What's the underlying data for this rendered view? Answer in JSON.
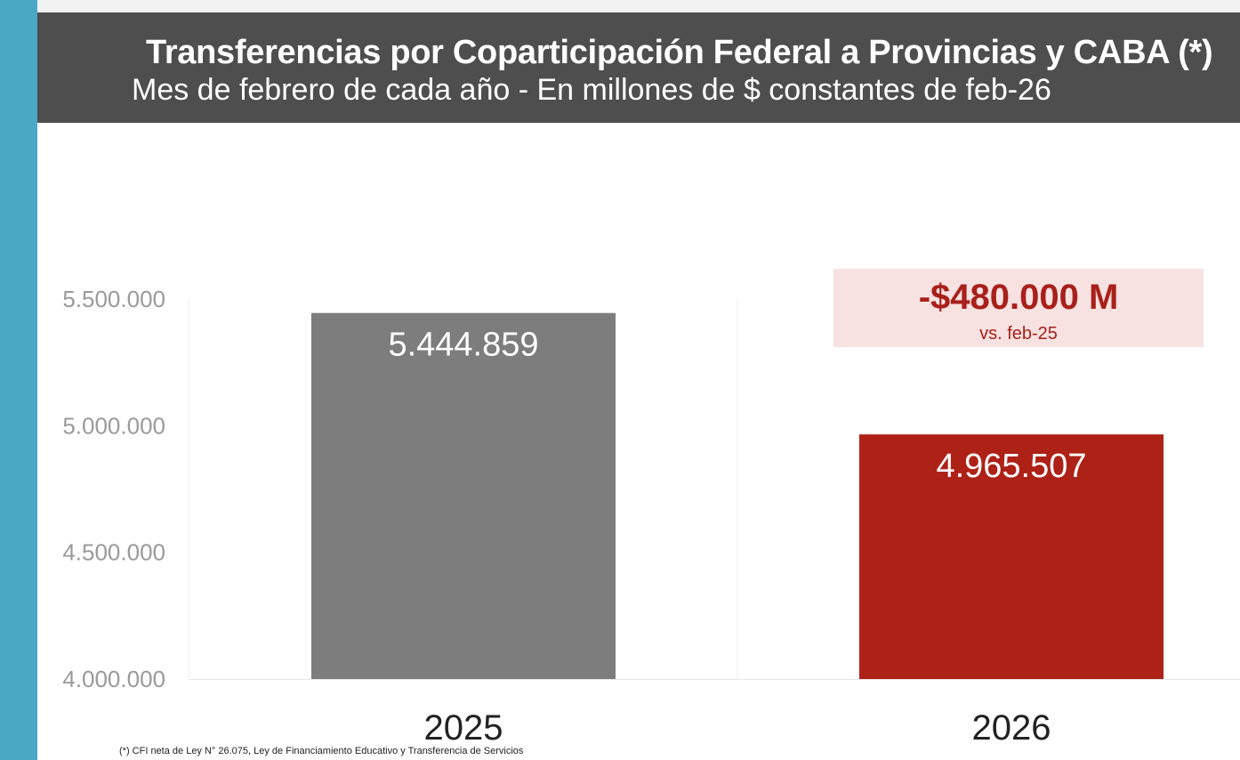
{
  "header": {
    "title": "Transferencias por Coparticipación Federal a Provincias y CABA (*)",
    "subtitle": "Mes de febrero de cada año - En millones de $ constantes de feb-26"
  },
  "annotation": {
    "value": "-$480.000 M",
    "note": "vs. feb-25"
  },
  "footnote": "(*) CFI neta de Ley N° 26.075, Ley de Financiamiento Educativo y Transferencia de Servicios",
  "colors": {
    "bar_2025": "#7d7d7d",
    "bar_2026": "#ae2117",
    "header_bg": "#4e4e4e",
    "accent_strip": "#4aa8c4"
  },
  "chart_data": {
    "type": "bar",
    "categories": [
      "2025",
      "2026"
    ],
    "values": [
      5444859,
      4965507
    ],
    "value_labels": [
      "5.444.859",
      "4.965.507"
    ],
    "title": "Transferencias por Coparticipación Federal a Provincias y CABA (*)",
    "subtitle": "Mes de febrero de cada año - En millones de $ constantes de feb-26",
    "xlabel": "",
    "ylabel": "",
    "ylim": [
      4000000,
      5500000
    ],
    "yticks": [
      4000000,
      4500000,
      5000000,
      5500000
    ],
    "ytick_labels": [
      "4.000.000",
      "4.500.000",
      "5.000.000",
      "5.500.000"
    ],
    "grid": false,
    "legend": "none"
  }
}
